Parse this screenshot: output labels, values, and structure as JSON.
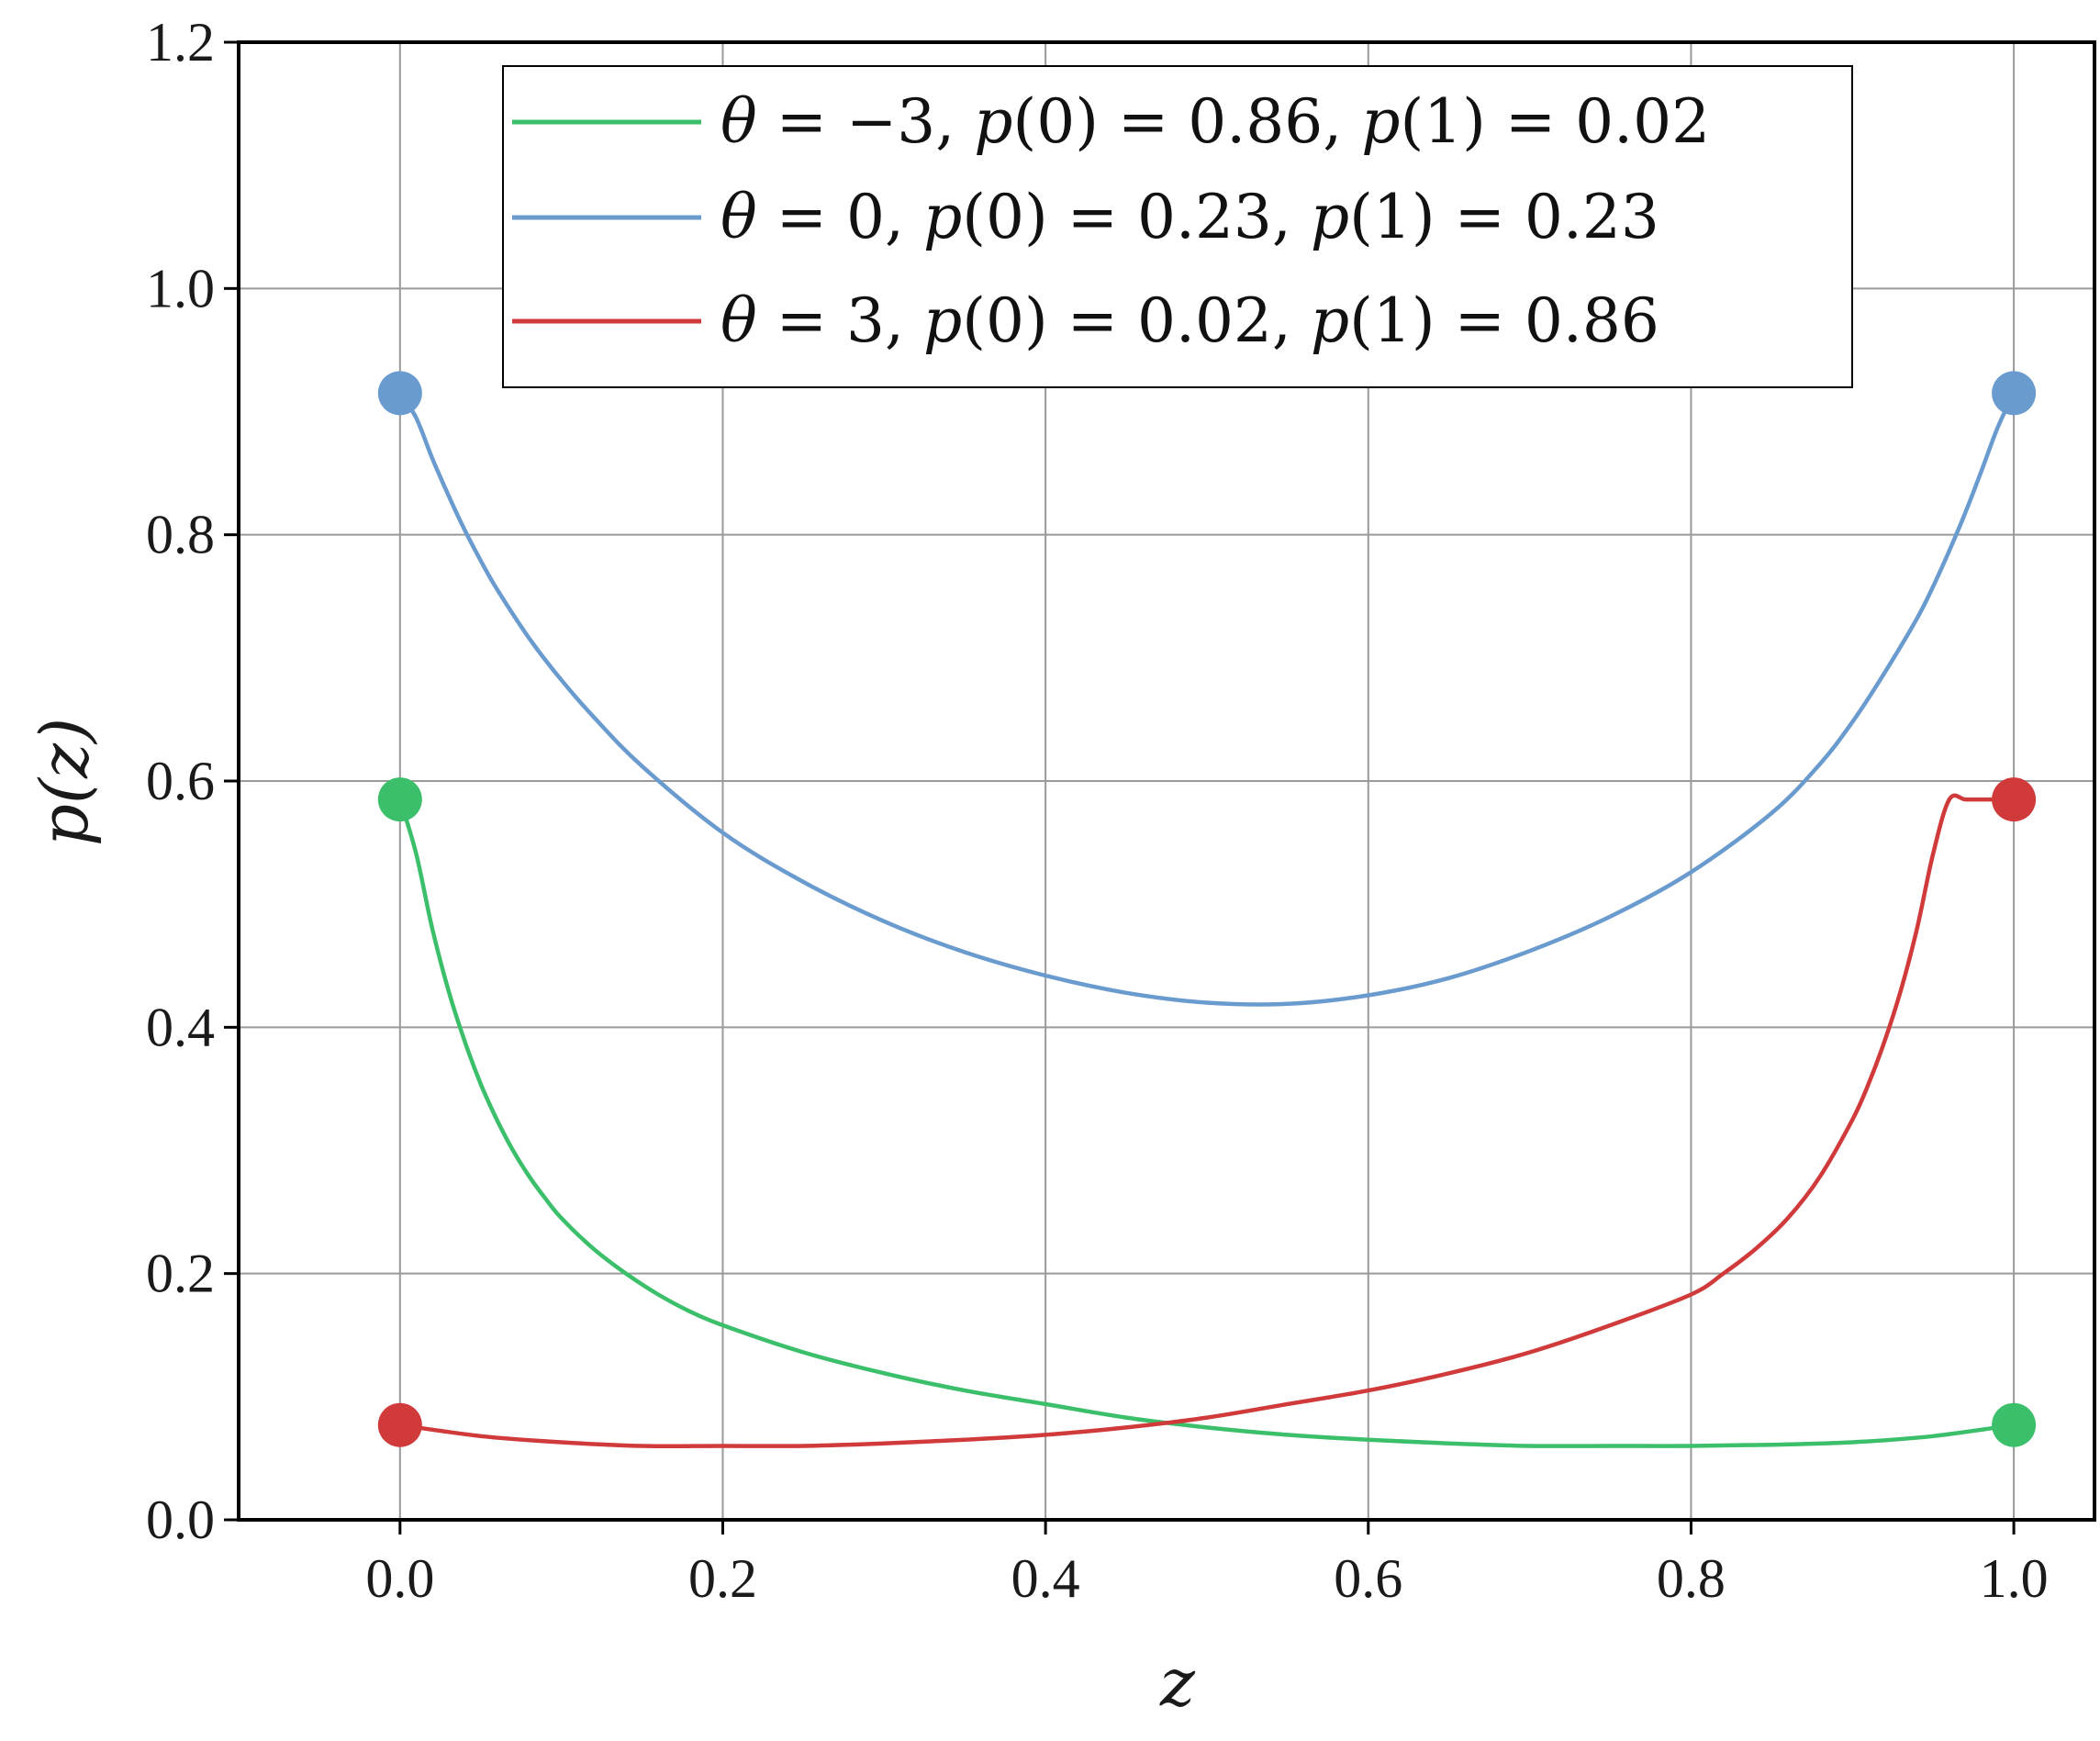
{
  "chart_data": {
    "type": "line",
    "xlabel": "z",
    "ylabel": "p(z)",
    "xlim": [
      -0.1,
      1.05
    ],
    "ylim": [
      0.0,
      1.2
    ],
    "xticks": [
      0.0,
      0.2,
      0.4,
      0.6,
      0.8,
      1.0
    ],
    "xtick_labels": [
      "0.0",
      "0.2",
      "0.4",
      "0.6",
      "0.8",
      "1.0"
    ],
    "yticks": [
      0.0,
      0.2,
      0.4,
      0.6,
      0.8,
      1.0,
      1.2
    ],
    "ytick_labels": [
      "0.0",
      "0.2",
      "0.4",
      "0.6",
      "0.8",
      "1.0",
      "1.2"
    ],
    "grid": true,
    "legend_position": "top-right",
    "series": [
      {
        "name": "θ = −3, p(0) = 0.86, p(1) = 0.02",
        "legend": {
          "theta": "−3",
          "p0": "0.86",
          "p1": "0.02"
        },
        "color": "#3cbf6a",
        "x": [
          0.0,
          0.01,
          0.02,
          0.03,
          0.04,
          0.05,
          0.06,
          0.07,
          0.08,
          0.09,
          0.1,
          0.12,
          0.14,
          0.16,
          0.18,
          0.2,
          0.25,
          0.3,
          0.35,
          0.4,
          0.45,
          0.5,
          0.55,
          0.6,
          0.65,
          0.7,
          0.75,
          0.8,
          0.85,
          0.9,
          0.95,
          1.0
        ],
        "y": [
          0.585,
          0.541,
          0.48,
          0.43,
          0.389,
          0.354,
          0.325,
          0.3,
          0.279,
          0.261,
          0.245,
          0.22,
          0.2,
          0.183,
          0.169,
          0.158,
          0.136,
          0.119,
          0.105,
          0.094,
          0.083,
          0.075,
          0.069,
          0.065,
          0.062,
          0.06,
          0.06,
          0.06,
          0.061,
          0.063,
          0.068,
          0.077
        ],
        "endpoints": [
          {
            "x": 0.0,
            "y": 0.585
          },
          {
            "x": 1.0,
            "y": 0.077
          }
        ]
      },
      {
        "name": "θ = 0, p(0) = 0.23, p(1) = 0.23",
        "legend": {
          "theta": "0",
          "p0": "0.23",
          "p1": "0.23"
        },
        "color": "#6a9bcf",
        "x": [
          0.0,
          0.01,
          0.02,
          0.03,
          0.04,
          0.05,
          0.06,
          0.08,
          0.1,
          0.12,
          0.15,
          0.2,
          0.25,
          0.3,
          0.35,
          0.4,
          0.45,
          0.5,
          0.55,
          0.6,
          0.65,
          0.7,
          0.75,
          0.8,
          0.85,
          0.88,
          0.9,
          0.92,
          0.94,
          0.95,
          0.96,
          0.97,
          0.98,
          0.99,
          1.0
        ],
        "y": [
          0.915,
          0.895,
          0.862,
          0.832,
          0.804,
          0.779,
          0.756,
          0.716,
          0.682,
          0.652,
          0.612,
          0.558,
          0.518,
          0.486,
          0.461,
          0.442,
          0.428,
          0.42,
          0.419,
          0.426,
          0.44,
          0.462,
          0.49,
          0.526,
          0.574,
          0.614,
          0.648,
          0.688,
          0.732,
          0.758,
          0.787,
          0.818,
          0.852,
          0.887,
          0.915
        ]
      },
      {
        "name": "θ = 3, p(0) = 0.02, p(1) = 0.86",
        "legend": {
          "theta": "3",
          "p0": "0.02",
          "p1": "0.86"
        },
        "color": "#d03a3a",
        "x": [
          0.0,
          0.05,
          0.1,
          0.15,
          0.2,
          0.25,
          0.3,
          0.35,
          0.4,
          0.45,
          0.5,
          0.55,
          0.6,
          0.65,
          0.7,
          0.75,
          0.8,
          0.82,
          0.84,
          0.86,
          0.88,
          0.9,
          0.91,
          0.92,
          0.93,
          0.94,
          0.95,
          0.96,
          0.97,
          0.98,
          0.99,
          1.0
        ],
        "y": [
          0.077,
          0.068,
          0.063,
          0.06,
          0.06,
          0.06,
          0.062,
          0.065,
          0.069,
          0.075,
          0.083,
          0.094,
          0.105,
          0.119,
          0.136,
          0.158,
          0.183,
          0.2,
          0.22,
          0.245,
          0.279,
          0.325,
          0.354,
          0.389,
          0.43,
          0.48,
          0.541,
          0.585,
          0.585,
          0.585,
          0.585,
          0.585
        ],
        "endpoints": [
          {
            "x": 0.0,
            "y": 0.077
          },
          {
            "x": 1.0,
            "y": 0.585
          }
        ]
      }
    ]
  }
}
